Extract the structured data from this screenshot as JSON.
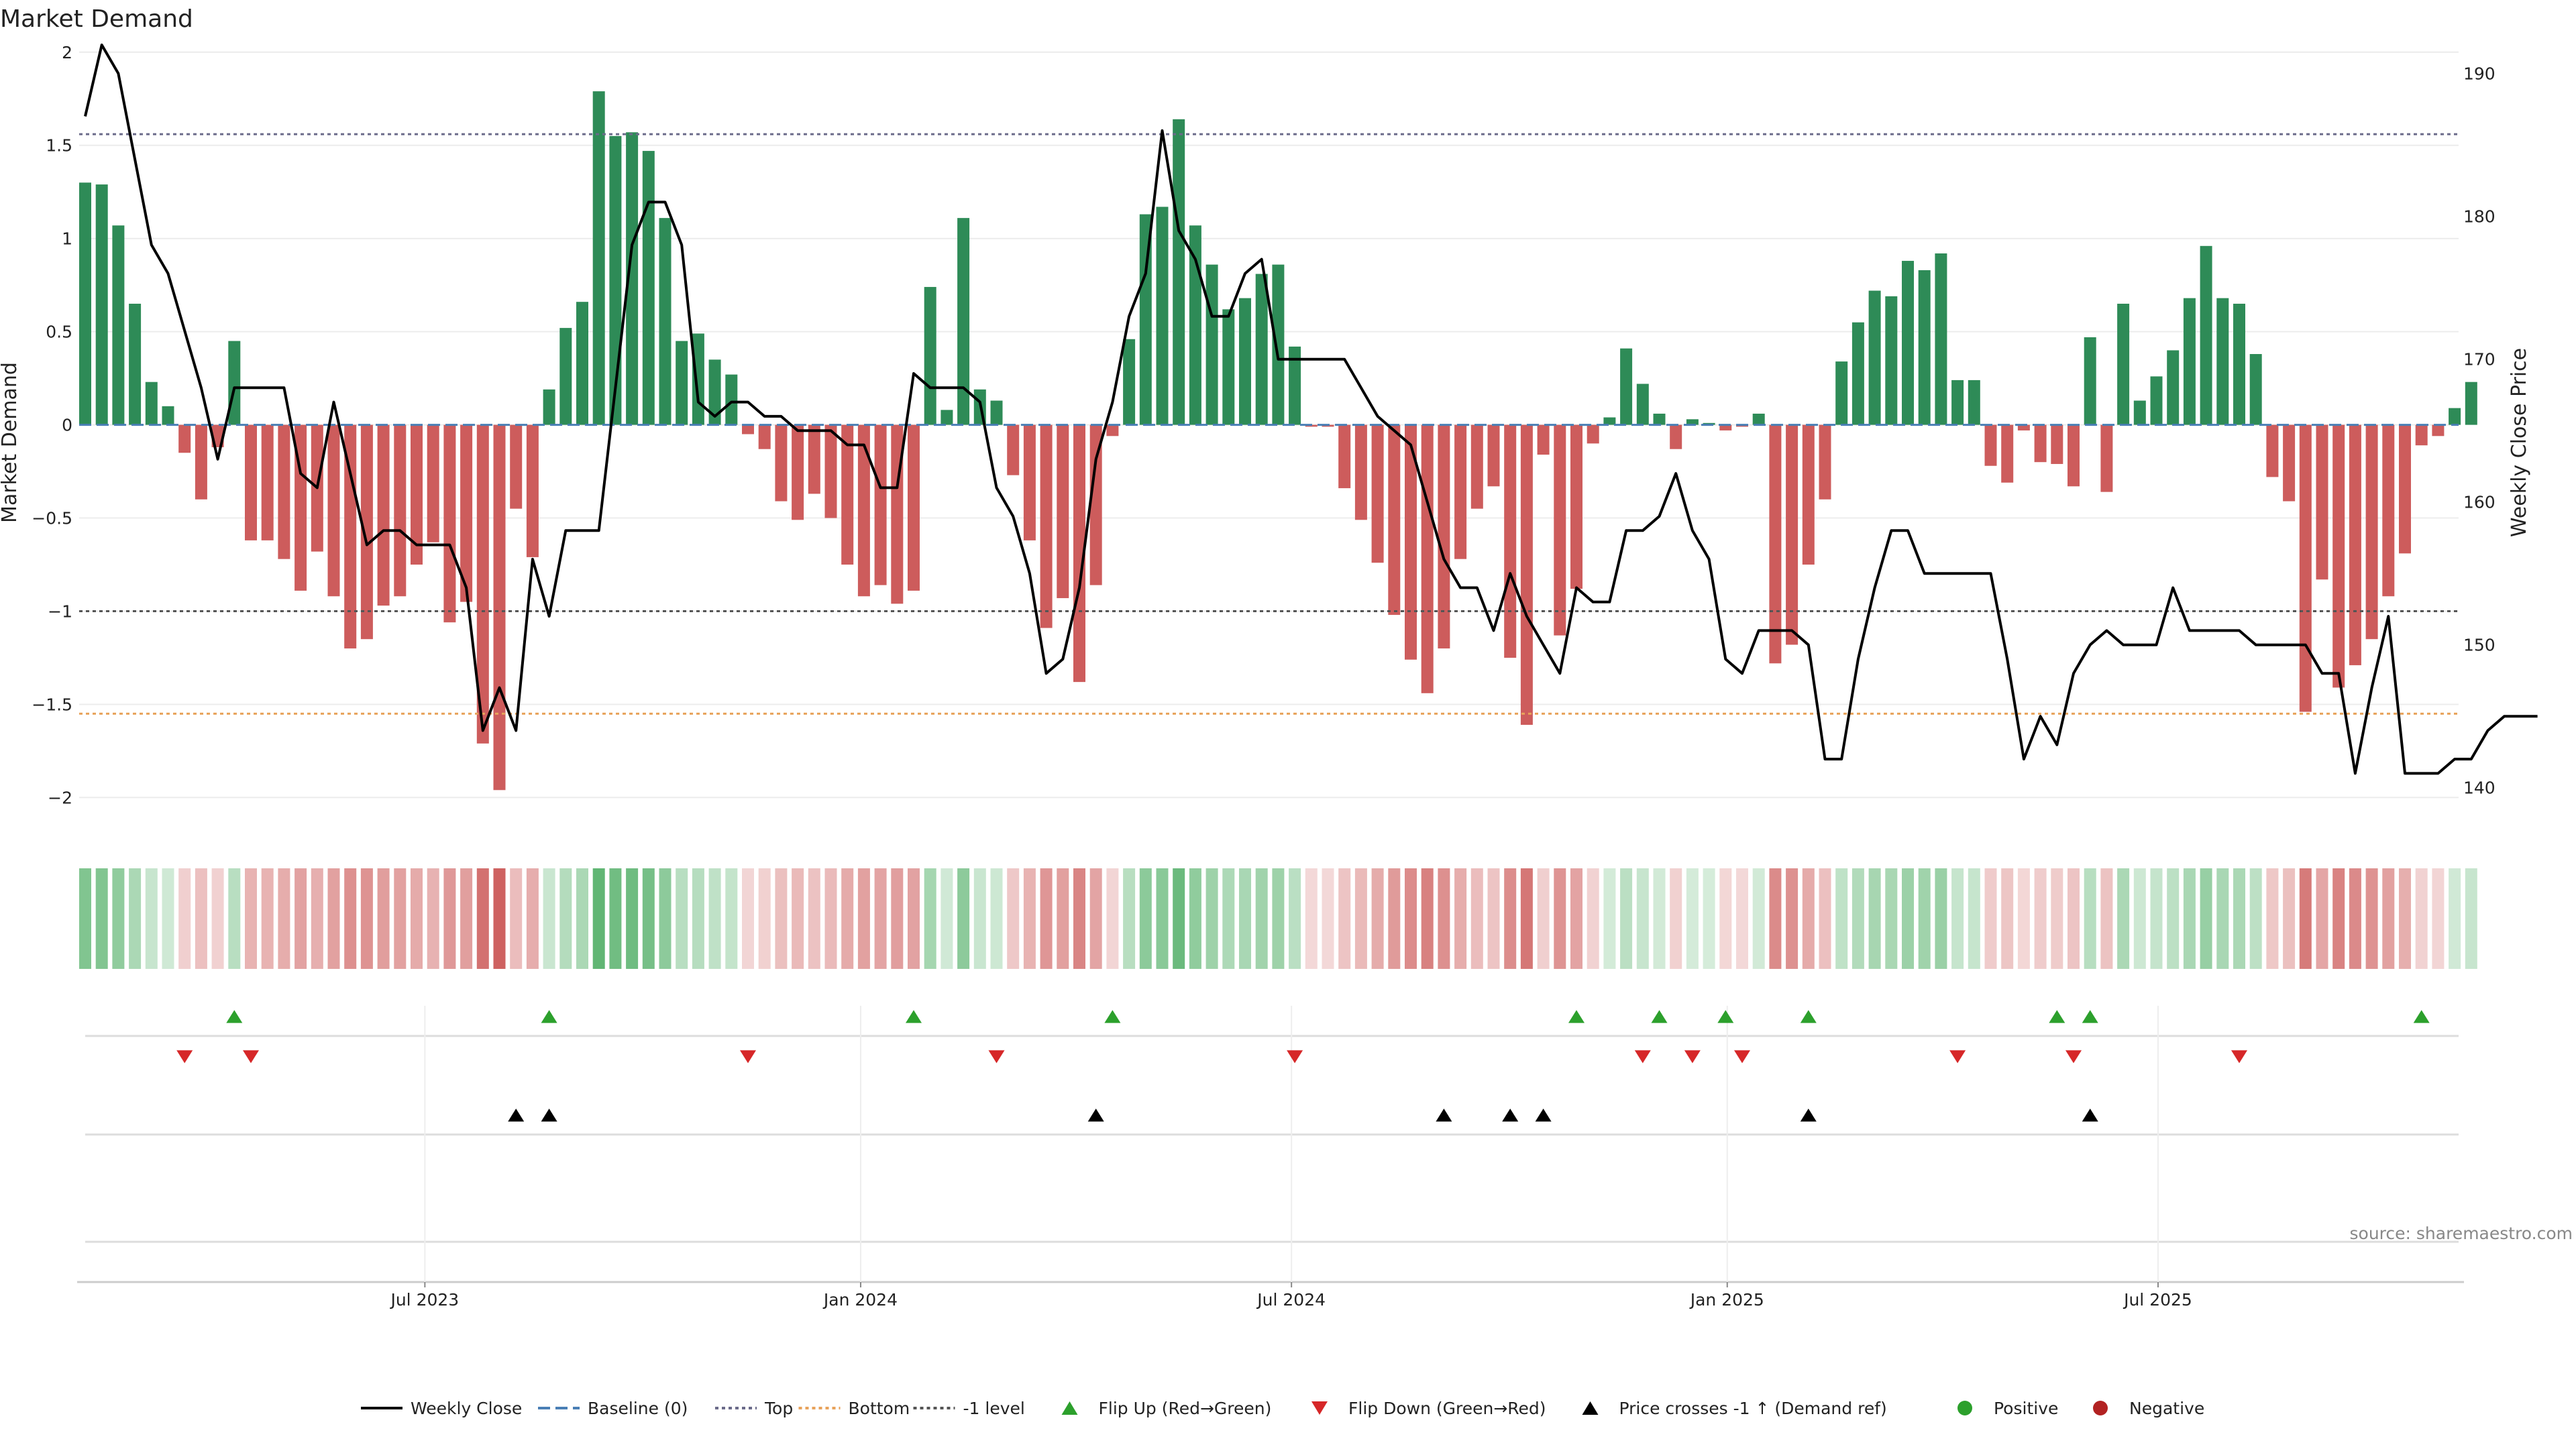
{
  "chart_data": {
    "type": "bar",
    "title": "Market Demand",
    "ylabel": "Market Demand",
    "y2label": "Weekly Close Price",
    "ylim": [
      -2.2,
      2.1
    ],
    "y_ticks": [
      "2",
      "1.5",
      "1",
      "0.5",
      "0",
      "−0.5",
      "−1",
      "−1.5",
      "−2"
    ],
    "y_tick_values": [
      2,
      1.5,
      1,
      0.5,
      0,
      -0.5,
      -1,
      -1.5,
      -2
    ],
    "y2lim": [
      136.7,
      192.8
    ],
    "y2_ticks": [
      "190",
      "180",
      "170",
      "160",
      "150",
      "140"
    ],
    "y2_tick_values": [
      190,
      180,
      170,
      160,
      150,
      140
    ],
    "x_ticks": [
      "Jul 2023",
      "Jan 2024",
      "Jul 2024",
      "Jan 2025",
      "Jul 2025"
    ],
    "x_tick_weeks": [
      20.5,
      46.8,
      72.8,
      99.1,
      125.1
    ],
    "reference_lines": [
      {
        "name": "Top",
        "value": 1.56,
        "color": "#6b6b8a"
      },
      {
        "name": "Bottom",
        "value": -1.55,
        "color": "#e8a25a"
      },
      {
        "name": "-1 level",
        "value": -1.0,
        "color": "#555555"
      }
    ],
    "series": [
      {
        "name": "Market Demand",
        "positive_color": "#2e8b57",
        "negative_color": "#cd5c5c",
        "values": [
          1.3,
          1.29,
          1.07,
          0.65,
          0.23,
          0.1,
          -0.15,
          -0.4,
          -0.12,
          0.45,
          -0.62,
          -0.62,
          -0.72,
          -0.89,
          -0.68,
          -0.92,
          -1.2,
          -1.15,
          -0.97,
          -0.92,
          -0.75,
          -0.63,
          -1.06,
          -0.95,
          -1.71,
          -1.96,
          -0.45,
          -0.71,
          0.19,
          0.52,
          0.66,
          1.79,
          1.55,
          1.57,
          1.47,
          1.11,
          0.45,
          0.49,
          0.35,
          0.27,
          -0.05,
          -0.13,
          -0.41,
          -0.51,
          -0.37,
          -0.5,
          -0.75,
          -0.92,
          -0.86,
          -0.96,
          -0.89,
          0.74,
          0.08,
          1.11,
          0.19,
          0.13,
          -0.27,
          -0.62,
          -1.09,
          -0.93,
          -1.38,
          -0.86,
          -0.06,
          0.46,
          1.13,
          1.17,
          1.64,
          1.07,
          0.86,
          0.62,
          0.68,
          0.81,
          0.86,
          0.42,
          -0.01,
          -0.01,
          -0.34,
          -0.51,
          -0.74,
          -1.02,
          -1.26,
          -1.44,
          -1.2,
          -0.72,
          -0.45,
          -0.33,
          -1.25,
          -1.61,
          -0.16,
          -1.13,
          -0.88,
          -0.1,
          0.04,
          0.41,
          0.22,
          0.06,
          -0.13,
          0.03,
          0.01,
          -0.03,
          -0.01,
          0.06,
          -1.28,
          -1.18,
          -0.75,
          -0.4,
          0.34,
          0.55,
          0.72,
          0.69,
          0.88,
          0.83,
          0.92,
          0.24,
          0.24,
          -0.22,
          -0.31,
          -0.03,
          -0.2,
          -0.21,
          -0.33,
          0.47,
          -0.36,
          0.65,
          0.13,
          0.26,
          0.4,
          0.68,
          0.96,
          0.68,
          0.65,
          0.38,
          -0.28,
          -0.41,
          -1.54,
          -0.83,
          -1.41,
          -1.29,
          -1.15,
          -0.92,
          -0.69,
          -0.11,
          -0.06,
          0.09,
          0.23
        ]
      },
      {
        "name": "Weekly Close",
        "axis": "right",
        "color": "#000000",
        "values": [
          187.0,
          192.0,
          190.0,
          184.0,
          178.0,
          176.0,
          172.0,
          168.0,
          163.0,
          168.0,
          168.0,
          168.0,
          168.0,
          162.0,
          161.0,
          167.0,
          162.0,
          157.0,
          158.0,
          158.0,
          157.0,
          157.0,
          157.0,
          154.0,
          144.0,
          147.0,
          144.0,
          156.0,
          152.0,
          158.0,
          158.0,
          158.0,
          168.0,
          178.0,
          181.0,
          181.0,
          178.0,
          167.0,
          166.0,
          167.0,
          167.0,
          166.0,
          166.0,
          165.0,
          165.0,
          165.0,
          164.0,
          164.0,
          161.0,
          161.0,
          169.0,
          168.0,
          168.0,
          168.0,
          167.0,
          161.0,
          159.0,
          155.0,
          148.0,
          149.0,
          154.0,
          163.0,
          167.0,
          173.0,
          176.0,
          186.0,
          179.0,
          177.0,
          173.0,
          173.0,
          176.0,
          177.0,
          170.0,
          170.0,
          170.0,
          170.0,
          170.0,
          168.0,
          166.0,
          165.0,
          164.0,
          160.0,
          156.0,
          154.0,
          154.0,
          151.0,
          155.0,
          152.0,
          150.0,
          148.0,
          154.0,
          153.0,
          153.0,
          158.0,
          158.0,
          159.0,
          162.0,
          158.0,
          156.0,
          149.0,
          148.0,
          151.0,
          151.0,
          151.0,
          150.0,
          142.0,
          142.0,
          149.0,
          154.0,
          158.0,
          158.0,
          155.0,
          155.0,
          155.0,
          155.0,
          155.0,
          149.0,
          142.0,
          145.0,
          143.0,
          148.0,
          150.0,
          151.0,
          150.0,
          150.0,
          150.0,
          154.0,
          151.0,
          151.0,
          151.0,
          151.0,
          150.0,
          150.0,
          150.0,
          150.0,
          148.0,
          148.0,
          141.0,
          147.0,
          152.0,
          141.0,
          141.0,
          141.0,
          142.0,
          142.0,
          144.0,
          145.0,
          145.0,
          145.0
        ]
      },
      {
        "name": "Baseline (0)",
        "value": 0,
        "color": "#4a7fb5"
      }
    ],
    "heat_strip": {
      "labels": [
        "Positive",
        "Negative"
      ],
      "positive_color": "#2e8b57",
      "negative_color": "#cd5c5c"
    },
    "events": {
      "flip_up": {
        "name": "Flip Up (Red→Green)",
        "color": "#2ca02c",
        "weeks": [
          9,
          28,
          50,
          62,
          90,
          95,
          99,
          104,
          119,
          121,
          141
        ]
      },
      "flip_down": {
        "name": "Flip Down (Green→Red)",
        "color": "#d62728",
        "weeks": [
          6,
          10,
          40,
          55,
          73,
          94,
          97,
          100,
          113,
          120,
          130
        ]
      },
      "price_cross": {
        "name": "Price crosses -1 ↑ (Demand ref)",
        "color": "#000000",
        "weeks": [
          26,
          28,
          61,
          82,
          86,
          88,
          104,
          121
        ]
      }
    },
    "legend": {
      "position": "bottom-center",
      "items": [
        {
          "label": "Weekly Close",
          "kind": "line",
          "color": "#000000",
          "dash": ""
        },
        {
          "label": "Baseline (0)",
          "kind": "line",
          "color": "#4a7fb5",
          "dash": "18 8"
        },
        {
          "label": "Top",
          "kind": "line",
          "color": "#6b6b8a",
          "dash": "5 5"
        },
        {
          "label": "Bottom",
          "kind": "line",
          "color": "#e8a25a",
          "dash": "5 5"
        },
        {
          "label": "-1 level",
          "kind": "line",
          "color": "#555555",
          "dash": "5 5"
        },
        {
          "label": "Flip Up (Red→Green)",
          "kind": "tri-up",
          "color": "#2ca02c"
        },
        {
          "label": "Flip Down (Green→Red)",
          "kind": "tri-down",
          "color": "#d62728"
        },
        {
          "label": "Price crosses -1 ↑ (Demand ref)",
          "kind": "tri-up",
          "color": "#000000"
        },
        {
          "label": "Positive",
          "kind": "dot",
          "color": "#2ca02c"
        },
        {
          "label": "Negative",
          "kind": "dot",
          "color": "#b22222"
        }
      ]
    },
    "source": "source: sharemaestro.com",
    "grid": true
  }
}
